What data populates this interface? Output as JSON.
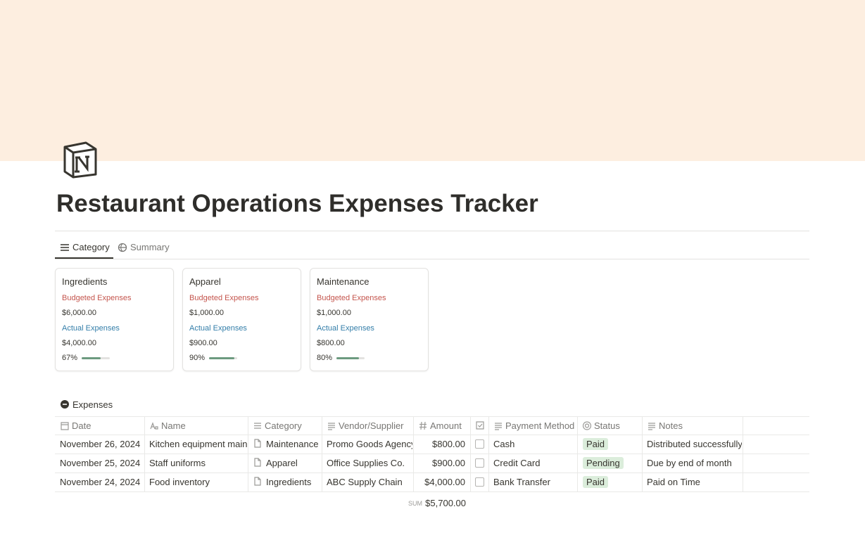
{
  "page": {
    "title": "Restaurant Operations Expenses Tracker"
  },
  "tabs": [
    "Category",
    "Summary"
  ],
  "cards": [
    {
      "name": "Ingredients",
      "budget_label": "Budgeted Expenses",
      "budget": "$6,000.00",
      "actual_label": "Actual Expenses",
      "actual": "$4,000.00",
      "progress": 67,
      "progress_label": "67%"
    },
    {
      "name": "Apparel",
      "budget_label": "Budgeted Expenses",
      "budget": "$1,000.00",
      "actual_label": "Actual Expenses",
      "actual": "$900.00",
      "progress": 90,
      "progress_label": "90%"
    },
    {
      "name": "Maintenance",
      "budget_label": "Budgeted Expenses",
      "budget": "$1,000.00",
      "actual_label": "Actual Expenses",
      "actual": "$800.00",
      "progress": 80,
      "progress_label": "80%"
    }
  ],
  "table": {
    "title": "Expenses",
    "columns": [
      "Date",
      "Name",
      "Category",
      "Vendor/Supplier",
      "Amount",
      "Payment Method",
      "Status",
      "Notes"
    ],
    "rows": [
      {
        "date": "November 26, 2024",
        "name": "Kitchen equipment maintenance",
        "category": "Maintenance",
        "vendor": "Promo Goods Agency",
        "amount": "$800.00",
        "checked": false,
        "method": "Cash",
        "status": "Paid",
        "notes": "Distributed successfully"
      },
      {
        "date": "November 25, 2024",
        "name": "Staff uniforms",
        "category": "Apparel",
        "vendor": "Office Supplies Co.",
        "amount": "$900.00",
        "checked": false,
        "method": "Credit Card",
        "status": "Pending",
        "notes": "Due by end of month"
      },
      {
        "date": "November 24, 2024",
        "name": "Food inventory",
        "category": "Ingredients",
        "vendor": "ABC Supply Chain",
        "amount": "$4,000.00",
        "checked": false,
        "method": "Bank Transfer",
        "status": "Paid",
        "notes": "Paid on Time"
      }
    ],
    "sum_label": "SUM",
    "sum": "$5,700.00"
  }
}
